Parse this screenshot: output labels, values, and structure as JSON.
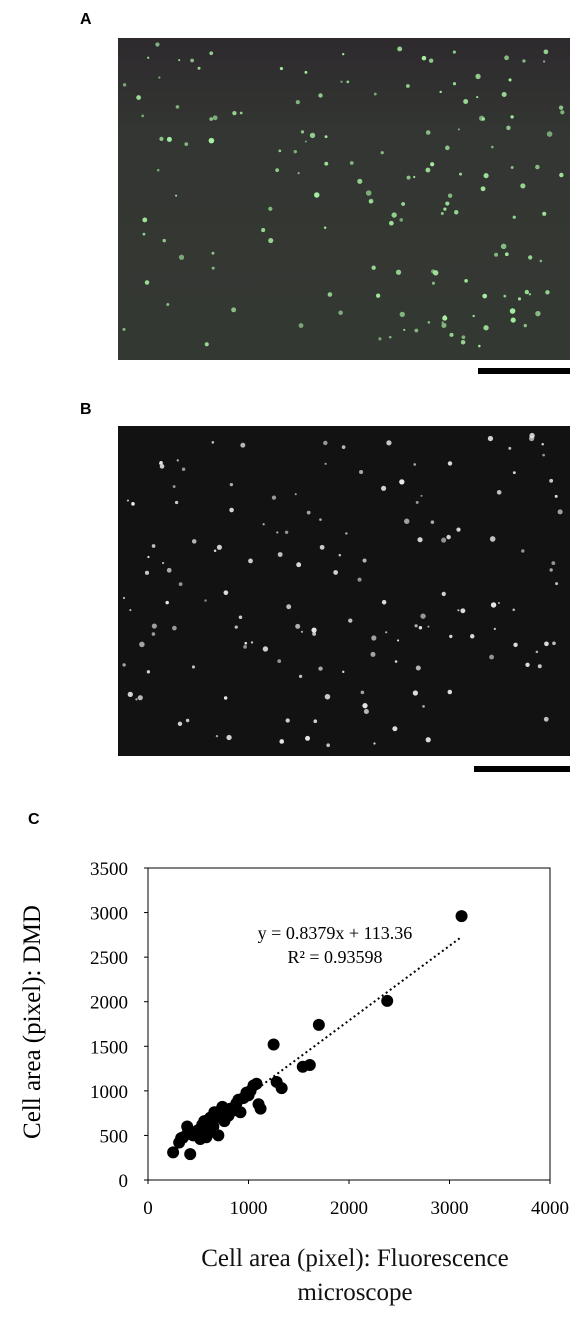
{
  "panels": [
    {
      "label": "A"
    },
    {
      "label": "B"
    },
    {
      "label": "C"
    }
  ],
  "chart_data": {
    "type": "scatter",
    "xlabel": "Cell area (pixel): Fluorescence microscope",
    "ylabel": "Cell area (pixel): DMD",
    "annotations": [
      "y = 0.8379x + 113.36",
      "R² = 0.93598"
    ],
    "trendline": {
      "slope": 0.8379,
      "intercept": 113.36
    },
    "color": "#000000",
    "x": [
      250,
      310,
      330,
      350,
      390,
      400,
      420,
      420,
      450,
      470,
      500,
      520,
      540,
      550,
      560,
      580,
      600,
      610,
      620,
      640,
      650,
      660,
      680,
      700,
      720,
      740,
      760,
      800,
      820,
      850,
      880,
      900,
      920,
      950,
      980,
      1000,
      1020,
      1050,
      1080,
      1100,
      1120,
      1250,
      1280,
      1330,
      1540,
      1610,
      1700,
      2380,
      3120
    ],
    "values": [
      310,
      420,
      470,
      480,
      600,
      560,
      290,
      520,
      500,
      540,
      560,
      460,
      620,
      600,
      660,
      480,
      520,
      550,
      700,
      640,
      600,
      760,
      700,
      500,
      780,
      820,
      660,
      720,
      800,
      780,
      860,
      900,
      760,
      920,
      980,
      950,
      1000,
      1060,
      1080,
      850,
      800,
      1520,
      1100,
      1030,
      1270,
      1290,
      1740,
      2010,
      2960
    ],
    "xlim": [
      0,
      4000
    ],
    "ylim": [
      0,
      3500
    ],
    "xticks": [
      0,
      1000,
      2000,
      3000,
      4000
    ],
    "yticks": [
      0,
      500,
      1000,
      1500,
      2000,
      2500,
      3000,
      3500
    ]
  }
}
